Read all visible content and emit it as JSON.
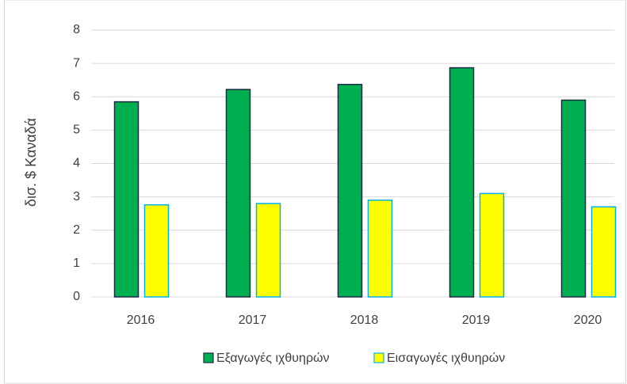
{
  "chart_data": {
    "type": "bar",
    "categories": [
      "2016",
      "2017",
      "2018",
      "2019",
      "2020"
    ],
    "ylabel": "δισ. $ Καναδά",
    "series": [
      {
        "name": "Εξαγωγές ιχθυηρών",
        "color": "#00b050",
        "edgecolor": "#1f2a44",
        "values": [
          5.85,
          6.22,
          6.37,
          6.87,
          5.9
        ]
      },
      {
        "name": "Εισαγωγές ιχθυηρών",
        "color": "#ffff00",
        "edgecolor": "#00b0f0",
        "values": [
          2.76,
          2.8,
          2.9,
          3.1,
          2.7
        ]
      }
    ],
    "ylim": [
      0,
      8
    ],
    "yticks": [
      0,
      1,
      2,
      3,
      4,
      5,
      6,
      7,
      8
    ],
    "grid": true,
    "legend": "bottom"
  }
}
